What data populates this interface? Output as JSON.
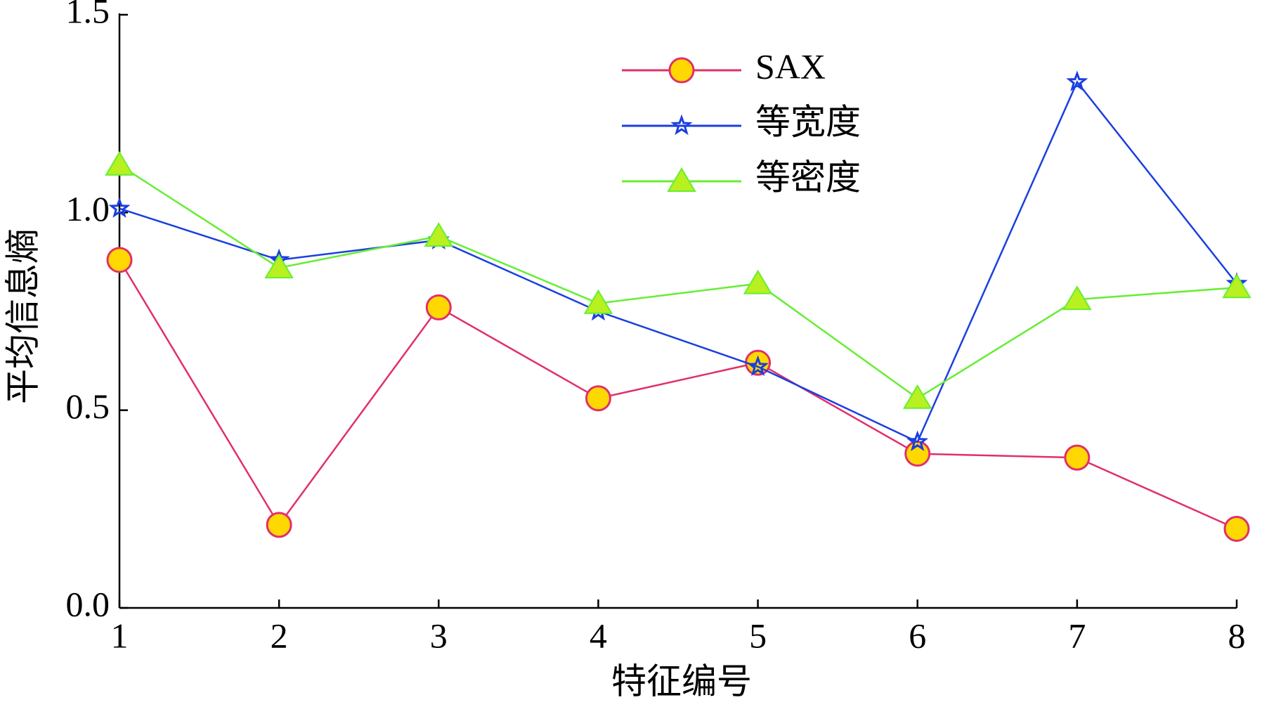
{
  "chart_data": {
    "type": "line",
    "x_label": "特征编号",
    "y_label": "平均信息熵",
    "x": [
      1,
      2,
      3,
      4,
      5,
      6,
      7,
      8
    ],
    "xlim": [
      1,
      8
    ],
    "xticks": [
      1,
      2,
      3,
      4,
      5,
      6,
      7,
      8
    ],
    "ylim": [
      0,
      1.5
    ],
    "yticks": [
      {
        "value": 0,
        "label": "0.0"
      },
      0.5,
      {
        "value": 1,
        "label": "1.0"
      },
      {
        "value": 1.5,
        "label": "1.5"
      }
    ],
    "series": [
      {
        "name": "SAX",
        "color": "#e0306a",
        "marker": "circle",
        "values": [
          0.88,
          0.21,
          0.76,
          0.53,
          0.62,
          0.39,
          0.38,
          0.2
        ]
      },
      {
        "name": "等宽度",
        "color": "#1a3fe0",
        "marker": "star",
        "values": [
          1.01,
          0.88,
          0.93,
          0.75,
          0.61,
          0.42,
          1.33,
          0.82
        ]
      },
      {
        "name": "等密度",
        "color": "#66ee33",
        "marker": "triangle",
        "values": [
          1.12,
          0.86,
          0.94,
          0.77,
          0.82,
          0.53,
          0.78,
          0.81
        ]
      }
    ]
  }
}
